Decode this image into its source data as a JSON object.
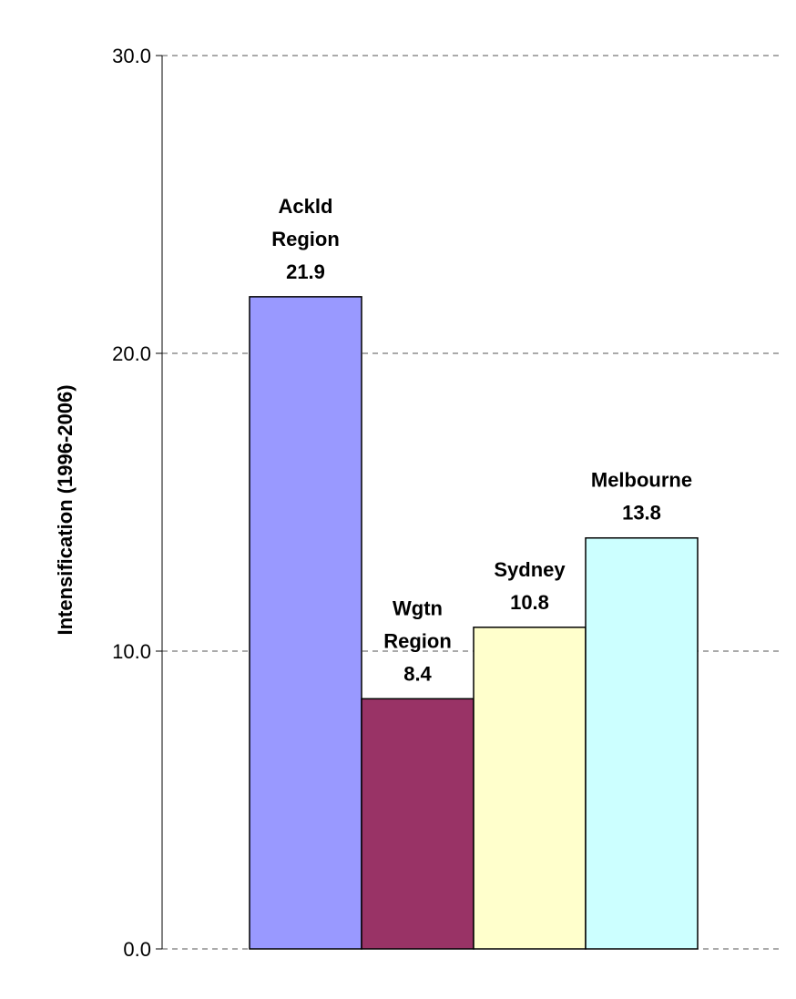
{
  "chart_data": {
    "type": "bar",
    "ylabel": "Intensification (1996-2006)",
    "ylim": [
      0,
      30
    ],
    "yticks": [
      0,
      10,
      20,
      30
    ],
    "ytick_labels": [
      "0.0",
      "10.0",
      "20.0",
      "30.0"
    ],
    "grid": true,
    "legend": "none",
    "bars": [
      {
        "label_lines": [
          "Ackld",
          "Region"
        ],
        "value_label": "21.9",
        "value": 21.9,
        "color": "#9999ff"
      },
      {
        "label_lines": [
          "Wgtn",
          "Region"
        ],
        "value_label": "8.4",
        "value": 8.4,
        "color": "#993366"
      },
      {
        "label_lines": [
          "Sydney"
        ],
        "value_label": "10.8",
        "value": 10.8,
        "color": "#ffffcc"
      },
      {
        "label_lines": [
          "Melbourne"
        ],
        "value_label": "13.8",
        "value": 13.8,
        "color": "#ccffff"
      }
    ]
  }
}
